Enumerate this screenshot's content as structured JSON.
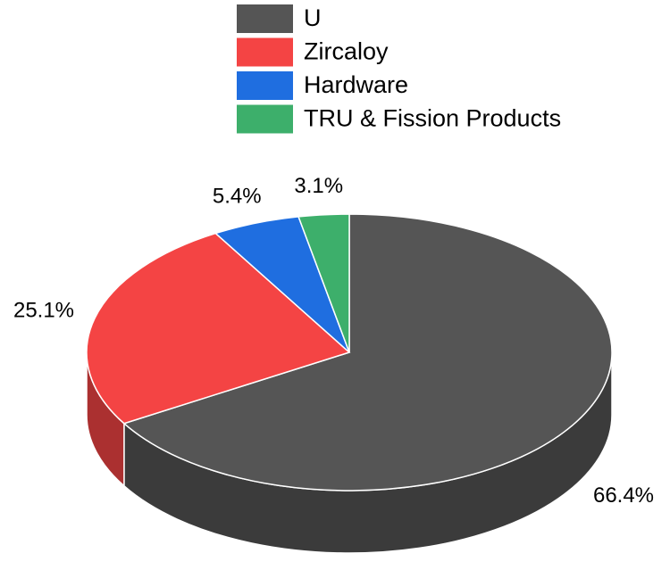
{
  "chart_data": {
    "type": "pie3d",
    "categories": [
      "U",
      "Zircaloy",
      "Hardware",
      "TRU & Fission Products"
    ],
    "values": [
      66.4,
      25.1,
      5.4,
      3.1
    ],
    "value_labels": [
      "66.4%",
      "25.1%",
      "5.4%",
      "3.1%"
    ],
    "colors": [
      "#555555",
      "#f44444",
      "#1f6ee0",
      "#3daf6b"
    ],
    "legend": "top"
  }
}
